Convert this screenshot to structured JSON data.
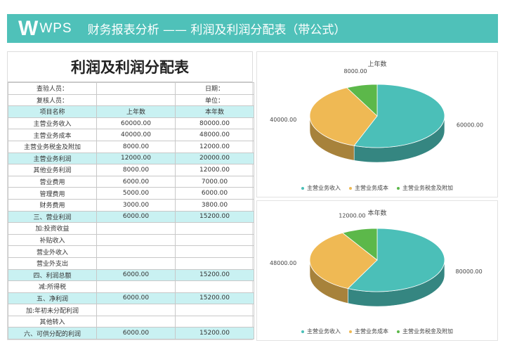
{
  "banner": {
    "logo_text": "WPS",
    "title": "财务报表分析 —— 利润及利润分配表（带公式）"
  },
  "sheet": {
    "title": "利润及利润分配表",
    "meta": [
      [
        "查验人员：",
        "",
        "日期："
      ],
      [
        "复核人员：",
        "",
        "单位："
      ]
    ],
    "header": [
      "项目名称",
      "上年数",
      "本年数"
    ],
    "rows": [
      {
        "c": [
          "主营业务收入",
          "60000.00",
          "80000.00"
        ],
        "hl": false
      },
      {
        "c": [
          "主营业务成本",
          "40000.00",
          "48000.00"
        ],
        "hl": false
      },
      {
        "c": [
          "主营业务税金及附加",
          "8000.00",
          "12000.00"
        ],
        "hl": false
      },
      {
        "c": [
          "主营业务利润",
          "12000.00",
          "20000.00"
        ],
        "hl": true
      },
      {
        "c": [
          "其他业务利润",
          "8000.00",
          "12000.00"
        ],
        "hl": false
      },
      {
        "c": [
          "营业费用",
          "6000.00",
          "7000.00"
        ],
        "hl": false
      },
      {
        "c": [
          "管理费用",
          "5000.00",
          "6000.00"
        ],
        "hl": false
      },
      {
        "c": [
          "财务费用",
          "3000.00",
          "3800.00"
        ],
        "hl": false
      },
      {
        "c": [
          "三、营业利润",
          "6000.00",
          "15200.00"
        ],
        "hl": true
      },
      {
        "c": [
          "加:投资收益",
          "",
          ""
        ],
        "hl": false
      },
      {
        "c": [
          "补贴收入",
          "",
          ""
        ],
        "hl": false
      },
      {
        "c": [
          "营业外收入",
          "",
          ""
        ],
        "hl": false
      },
      {
        "c": [
          "营业外支出",
          "",
          ""
        ],
        "hl": false
      },
      {
        "c": [
          "四、利润总额",
          "6000.00",
          "15200.00"
        ],
        "hl": true
      },
      {
        "c": [
          "减:所得税",
          "",
          ""
        ],
        "hl": false
      },
      {
        "c": [
          "五、净利润",
          "6000.00",
          "15200.00"
        ],
        "hl": true
      },
      {
        "c": [
          "加:年初未分配利润",
          "",
          ""
        ],
        "hl": false
      },
      {
        "c": [
          "其他转入",
          "",
          ""
        ],
        "hl": false
      },
      {
        "c": [
          "六、可供分配的利润",
          "6000.00",
          "15200.00"
        ],
        "hl": true
      }
    ]
  },
  "chart_data": [
    {
      "type": "pie",
      "title": "上年数",
      "categories": [
        "主营业务收入",
        "主营业务成本",
        "主营业务税金及附加"
      ],
      "values": [
        60000,
        40000,
        8000
      ],
      "labels": [
        "60000.00",
        "40000.00",
        "8000.00"
      ],
      "colors": [
        "#4bbfb8",
        "#efb954",
        "#5cb84a"
      ],
      "legend": "bottom"
    },
    {
      "type": "pie",
      "title": "本年数",
      "categories": [
        "主营业务收入",
        "主营业务成本",
        "主营业务税金及附加"
      ],
      "values": [
        80000,
        48000,
        12000
      ],
      "labels": [
        "80000.00",
        "48000.00",
        "12000.00"
      ],
      "colors": [
        "#4bbfb8",
        "#efb954",
        "#5cb84a"
      ],
      "legend": "bottom"
    }
  ]
}
